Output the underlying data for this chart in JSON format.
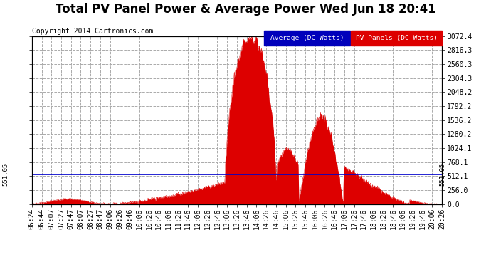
{
  "title": "Total PV Panel Power & Average Power Wed Jun 18 20:41",
  "copyright": "Copyright 2014 Cartronics.com",
  "average_value": 551.05,
  "y_max": 3072.4,
  "y_min": 0.0,
  "y_ticks": [
    0.0,
    256.0,
    512.1,
    768.1,
    1024.1,
    1280.2,
    1536.2,
    1792.2,
    2048.2,
    2304.3,
    2560.3,
    2816.3,
    3072.4
  ],
  "background_color": "#ffffff",
  "plot_bg_color": "#ffffff",
  "grid_color": "#aaaaaa",
  "fill_color": "#dd0000",
  "avg_line_color": "#0000cc",
  "avg_line_label": "Average (DC Watts)",
  "pv_label": "PV Panels (DC Watts)",
  "title_fontsize": 12,
  "copyright_fontsize": 7,
  "tick_fontsize": 7,
  "legend_fontsize": 7.5,
  "x_tick_labels": [
    "06:24",
    "06:44",
    "07:07",
    "07:27",
    "07:47",
    "08:07",
    "08:27",
    "08:47",
    "09:06",
    "09:26",
    "09:46",
    "10:06",
    "10:26",
    "10:46",
    "11:06",
    "11:26",
    "11:46",
    "12:06",
    "12:26",
    "12:46",
    "13:06",
    "13:26",
    "13:46",
    "14:06",
    "14:26",
    "14:46",
    "15:06",
    "15:26",
    "15:46",
    "16:06",
    "16:26",
    "16:46",
    "17:06",
    "17:26",
    "17:46",
    "18:06",
    "18:26",
    "18:46",
    "19:06",
    "19:26",
    "19:46",
    "20:06",
    "20:26"
  ]
}
